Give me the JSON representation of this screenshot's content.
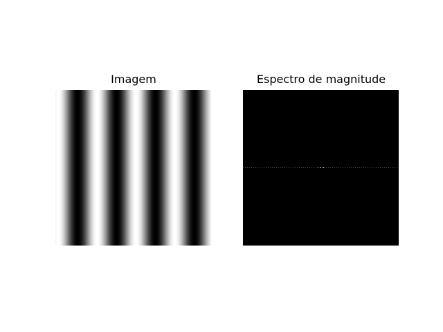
{
  "chart_data": [
    {
      "type": "heatmap",
      "title": "Imagem",
      "description_kind": "image",
      "pattern": "vertical-sinusoidal-stripes",
      "stripe_cycles": 4,
      "intensity_range": [
        0,
        1
      ],
      "colormap": "gray",
      "axes_visible": false
    },
    {
      "type": "heatmap",
      "title": "Espectro de magnitude",
      "description_kind": "spectrum",
      "pattern": "dark-with-horizontal-line-through-center",
      "colormap": "gray",
      "axes_visible": false
    }
  ],
  "colors": {
    "background": "#ffffff",
    "spectrum_bg": "#000000",
    "line_dot": "#5a5a5a",
    "peak": "#ffffff"
  }
}
